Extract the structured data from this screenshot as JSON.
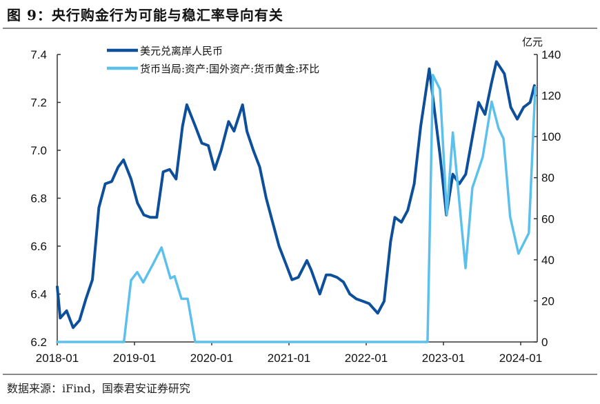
{
  "title": "图 9：央行购金行为可能与稳汇率导向有关",
  "source": "数据来源：iFind，国泰君安证券研究",
  "colors": {
    "usdcnh": "#0d4f9a",
    "gold": "#5bc0eb"
  },
  "chart_data": {
    "type": "line",
    "title": "图 9：央行购金行为可能与稳汇率导向有关",
    "xlabel": "",
    "ylabel_left": "",
    "ylabel_right": "亿元",
    "xlim": [
      "2018-01",
      "2024-03"
    ],
    "ylim_left": [
      6.2,
      7.4
    ],
    "ylim_right": [
      0,
      140
    ],
    "x_ticks": [
      "2018-01",
      "2019-01",
      "2020-01",
      "2021-01",
      "2022-01",
      "2023-01",
      "2024-01"
    ],
    "y_ticks_left": [
      "6.2",
      "6.4",
      "6.6",
      "6.8",
      "7.0",
      "7.2",
      "7.4"
    ],
    "y_ticks_right": [
      "0",
      "20",
      "40",
      "60",
      "80",
      "100",
      "120",
      "140"
    ],
    "grid": false,
    "legend_position": "top-left",
    "series": [
      {
        "name": "美元兑离岸人民币",
        "axis": "left",
        "color": "#0d4f9a",
        "points": [
          [
            "2018-01-01",
            6.43
          ],
          [
            "2018-01-15",
            6.3
          ],
          [
            "2018-02-15",
            6.33
          ],
          [
            "2018-03-15",
            6.26
          ],
          [
            "2018-04-15",
            6.29
          ],
          [
            "2018-05-15",
            6.38
          ],
          [
            "2018-06-15",
            6.46
          ],
          [
            "2018-07-01",
            6.62
          ],
          [
            "2018-07-15",
            6.76
          ],
          [
            "2018-08-15",
            6.86
          ],
          [
            "2018-09-15",
            6.87
          ],
          [
            "2018-10-15",
            6.93
          ],
          [
            "2018-11-10",
            6.96
          ],
          [
            "2018-12-15",
            6.88
          ],
          [
            "2019-01-15",
            6.78
          ],
          [
            "2019-02-15",
            6.73
          ],
          [
            "2019-03-15",
            6.72
          ],
          [
            "2019-04-15",
            6.72
          ],
          [
            "2019-05-15",
            6.91
          ],
          [
            "2019-06-15",
            6.92
          ],
          [
            "2019-07-15",
            6.88
          ],
          [
            "2019-08-15",
            7.1
          ],
          [
            "2019-09-05",
            7.19
          ],
          [
            "2019-10-15",
            7.1
          ],
          [
            "2019-11-15",
            7.03
          ],
          [
            "2019-12-15",
            7.02
          ],
          [
            "2020-01-15",
            6.92
          ],
          [
            "2020-02-15",
            7.0
          ],
          [
            "2020-03-20",
            7.12
          ],
          [
            "2020-04-15",
            7.08
          ],
          [
            "2020-05-25",
            7.19
          ],
          [
            "2020-06-15",
            7.08
          ],
          [
            "2020-07-15",
            7.0
          ],
          [
            "2020-08-15",
            6.93
          ],
          [
            "2020-09-15",
            6.8
          ],
          [
            "2020-10-15",
            6.7
          ],
          [
            "2020-11-15",
            6.6
          ],
          [
            "2020-12-15",
            6.53
          ],
          [
            "2021-01-15",
            6.46
          ],
          [
            "2021-02-15",
            6.47
          ],
          [
            "2021-03-25",
            6.54
          ],
          [
            "2021-04-15",
            6.5
          ],
          [
            "2021-05-25",
            6.4
          ],
          [
            "2021-06-25",
            6.48
          ],
          [
            "2021-07-15",
            6.48
          ],
          [
            "2021-08-15",
            6.47
          ],
          [
            "2021-09-15",
            6.45
          ],
          [
            "2021-10-15",
            6.4
          ],
          [
            "2021-11-15",
            6.38
          ],
          [
            "2021-12-15",
            6.37
          ],
          [
            "2022-01-15",
            6.36
          ],
          [
            "2022-02-25",
            6.32
          ],
          [
            "2022-03-25",
            6.37
          ],
          [
            "2022-04-25",
            6.62
          ],
          [
            "2022-05-15",
            6.72
          ],
          [
            "2022-06-15",
            6.7
          ],
          [
            "2022-07-15",
            6.75
          ],
          [
            "2022-08-15",
            6.86
          ],
          [
            "2022-09-15",
            7.1
          ],
          [
            "2022-10-25",
            7.34
          ],
          [
            "2022-11-15",
            7.2
          ],
          [
            "2022-12-15",
            6.98
          ],
          [
            "2023-01-15",
            6.73
          ],
          [
            "2023-02-15",
            6.9
          ],
          [
            "2023-03-15",
            6.86
          ],
          [
            "2023-04-15",
            6.9
          ],
          [
            "2023-05-15",
            7.05
          ],
          [
            "2023-06-15",
            7.2
          ],
          [
            "2023-07-15",
            7.15
          ],
          [
            "2023-08-15",
            7.28
          ],
          [
            "2023-09-08",
            7.37
          ],
          [
            "2023-10-15",
            7.32
          ],
          [
            "2023-11-15",
            7.18
          ],
          [
            "2023-12-15",
            7.13
          ],
          [
            "2024-01-15",
            7.18
          ],
          [
            "2024-02-15",
            7.2
          ],
          [
            "2024-03-05",
            7.27
          ]
        ]
      },
      {
        "name": "货币当局:资产:国外资产:货币黄金:环比",
        "axis": "right",
        "color": "#5bc0eb",
        "points": [
          [
            "2018-01-01",
            0
          ],
          [
            "2018-11-12",
            0
          ],
          [
            "2018-12-15",
            30
          ],
          [
            "2019-01-14",
            34
          ],
          [
            "2019-02-12",
            29
          ],
          [
            "2019-03-28",
            38
          ],
          [
            "2019-05-07",
            46
          ],
          [
            "2019-06-19",
            31
          ],
          [
            "2019-07-08",
            32
          ],
          [
            "2019-08-10",
            21
          ],
          [
            "2019-09-09",
            21
          ],
          [
            "2019-10-14",
            0
          ],
          [
            "2022-10-17",
            0
          ],
          [
            "2022-11-12",
            130
          ],
          [
            "2022-12-15",
            123
          ],
          [
            "2023-01-17",
            62
          ],
          [
            "2023-02-15",
            102
          ],
          [
            "2023-04-14",
            36
          ],
          [
            "2023-05-16",
            75
          ],
          [
            "2023-07-04",
            90
          ],
          [
            "2023-08-16",
            117
          ],
          [
            "2023-09-18",
            104
          ],
          [
            "2023-10-11",
            99
          ],
          [
            "2023-11-12",
            61
          ],
          [
            "2023-12-21",
            43
          ],
          [
            "2024-02-09",
            53
          ],
          [
            "2024-03-09",
            124
          ]
        ]
      }
    ]
  }
}
